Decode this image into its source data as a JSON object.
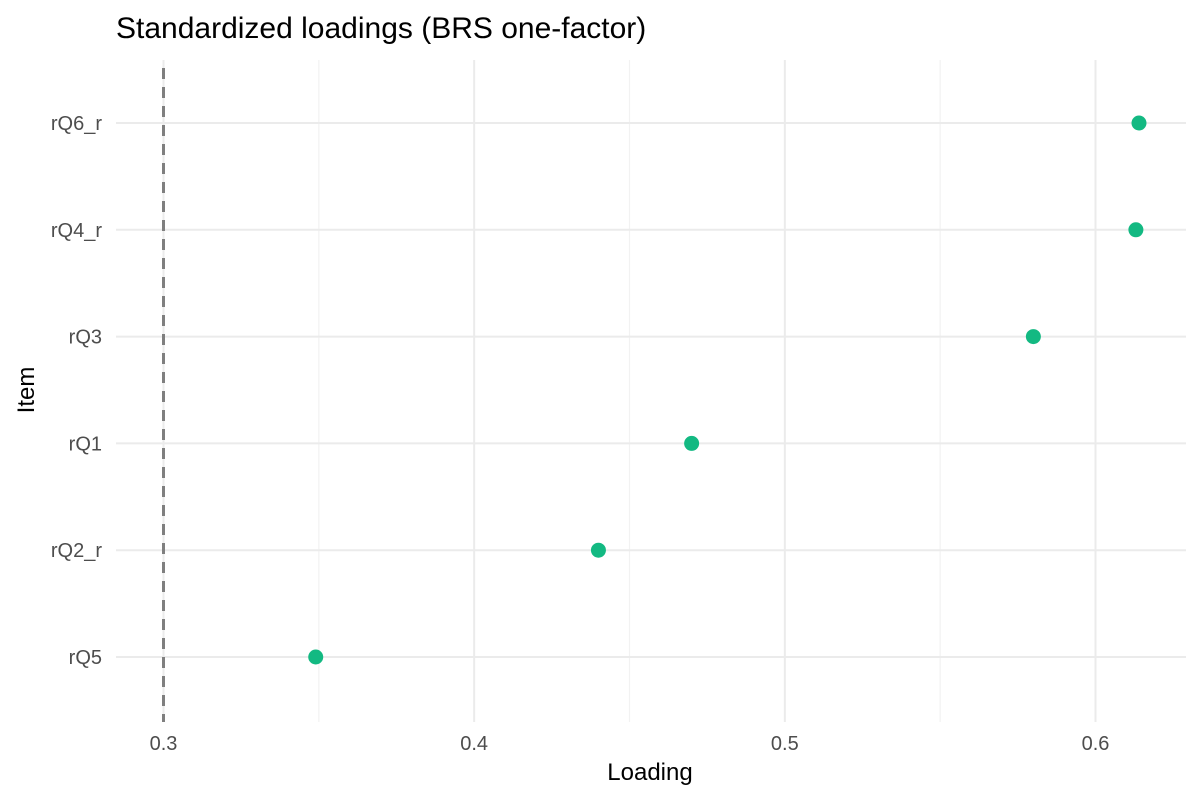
{
  "chart_data": {
    "type": "scatter",
    "title": "Standardized loadings (BRS one-factor)",
    "xlabel": "Loading",
    "ylabel": "Item",
    "categories": [
      "rQ5",
      "rQ2_r",
      "rQ1",
      "rQ3",
      "rQ4_r",
      "rQ6_r"
    ],
    "values": [
      0.349,
      0.44,
      0.47,
      0.58,
      0.613,
      0.614
    ],
    "xlim": [
      0.3,
      0.614
    ],
    "xticks": [
      0.3,
      0.4,
      0.5,
      0.6
    ],
    "xtick_labels": [
      "0.3",
      "0.4",
      "0.5",
      "0.6"
    ],
    "reference_line": 0.3,
    "grid": true,
    "point_color": "#13b982",
    "reference_color": "#7f7f7f"
  }
}
